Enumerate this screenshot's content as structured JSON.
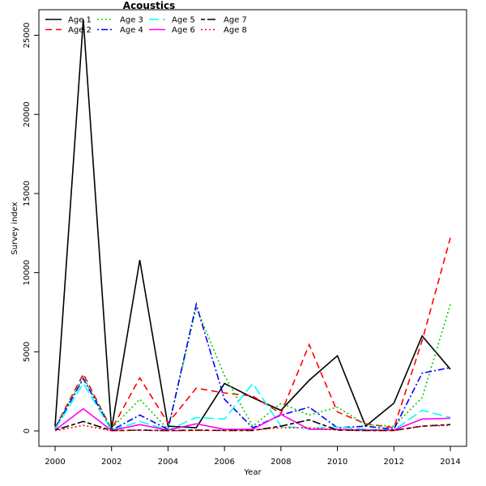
{
  "chart_data": {
    "type": "line",
    "title": "Acoustics",
    "xlabel": "Year",
    "ylabel": "Survey index",
    "xlim": [
      2000,
      2014
    ],
    "ylim": [
      0,
      26000
    ],
    "x_ticks": [
      2000,
      2002,
      2004,
      2006,
      2008,
      2010,
      2012,
      2014
    ],
    "y_ticks": [
      0,
      5000,
      10000,
      15000,
      20000,
      25000
    ],
    "legend_position": "top-left",
    "x": [
      2000,
      2001,
      2002,
      2003,
      2004,
      2005,
      2006,
      2007,
      2008,
      2009,
      2010,
      2011,
      2012,
      2013,
      2014
    ],
    "series": [
      {
        "name": "Age 1",
        "color": "#000000",
        "dash": "solid",
        "values": [
          300,
          26000,
          100,
          10800,
          300,
          200,
          3000,
          2100,
          1300,
          3200,
          4750,
          300,
          1750,
          6000,
          3900
        ]
      },
      {
        "name": "Age 2",
        "color": "#ff0000",
        "dash": "dashed",
        "values": [
          200,
          3600,
          100,
          3350,
          500,
          2700,
          2400,
          2200,
          1100,
          5450,
          1200,
          450,
          200,
          5700,
          12200
        ]
      },
      {
        "name": "Age 3",
        "color": "#00cd00",
        "dash": "dotted",
        "values": [
          200,
          3400,
          150,
          2000,
          100,
          7800,
          3500,
          300,
          1750,
          1000,
          1500,
          400,
          300,
          2100,
          8000
        ]
      },
      {
        "name": "Age 4",
        "color": "#0000ff",
        "dash": "dotdash",
        "values": [
          150,
          3300,
          50,
          1000,
          100,
          8000,
          2000,
          200,
          1000,
          1500,
          200,
          300,
          100,
          3650,
          4000
        ]
      },
      {
        "name": "Age 5",
        "color": "#00ffff",
        "dash": "longdash",
        "values": [
          100,
          3000,
          50,
          600,
          50,
          850,
          750,
          3000,
          300,
          150,
          250,
          100,
          50,
          1300,
          850
        ]
      },
      {
        "name": "Age 6",
        "color": "#ff00ff",
        "dash": "solid",
        "values": [
          50,
          1400,
          30,
          400,
          50,
          450,
          100,
          100,
          1050,
          100,
          100,
          50,
          50,
          750,
          800
        ]
      },
      {
        "name": "Age 7",
        "color": "#000000",
        "dash": "twodash",
        "values": [
          50,
          600,
          20,
          50,
          20,
          50,
          30,
          30,
          300,
          700,
          50,
          30,
          30,
          300,
          400
        ]
      },
      {
        "name": "Age 8",
        "color": "#ff0000",
        "dash": "dotted",
        "values": [
          20,
          350,
          10,
          50,
          10,
          30,
          30,
          50,
          200,
          200,
          50,
          20,
          20,
          300,
          350
        ]
      }
    ]
  }
}
